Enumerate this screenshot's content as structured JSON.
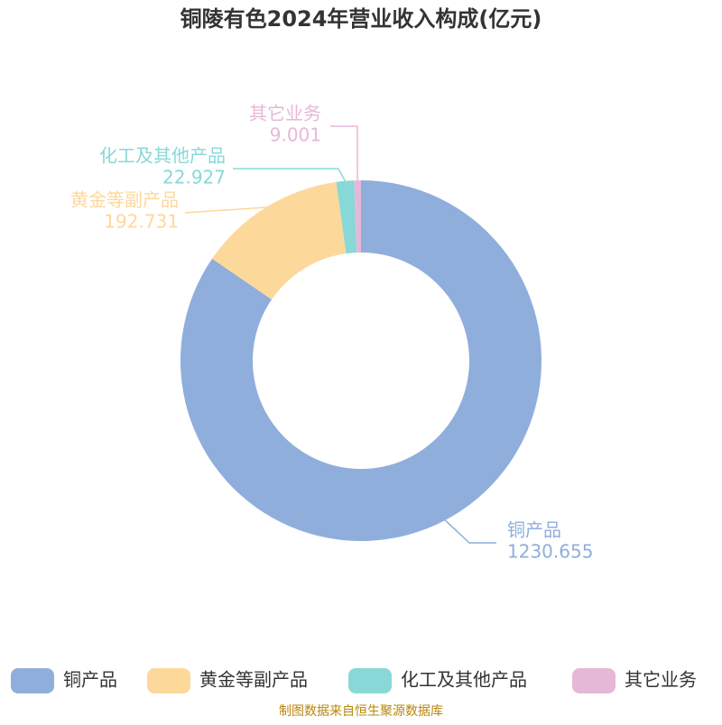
{
  "chart_data": {
    "type": "donut",
    "title": "铜陵有色2024年营业收入构成(亿元)",
    "categories": [
      "铜产品",
      "黄金等副产品",
      "化工及其他产品",
      "其它业务"
    ],
    "values": [
      1230.655,
      192.731,
      22.927,
      9.001
    ],
    "colors": [
      "#8faedb",
      "#fdd89b",
      "#88d8d8",
      "#e6b8d8"
    ],
    "source": "制图数据来自恒生聚源数据库"
  }
}
